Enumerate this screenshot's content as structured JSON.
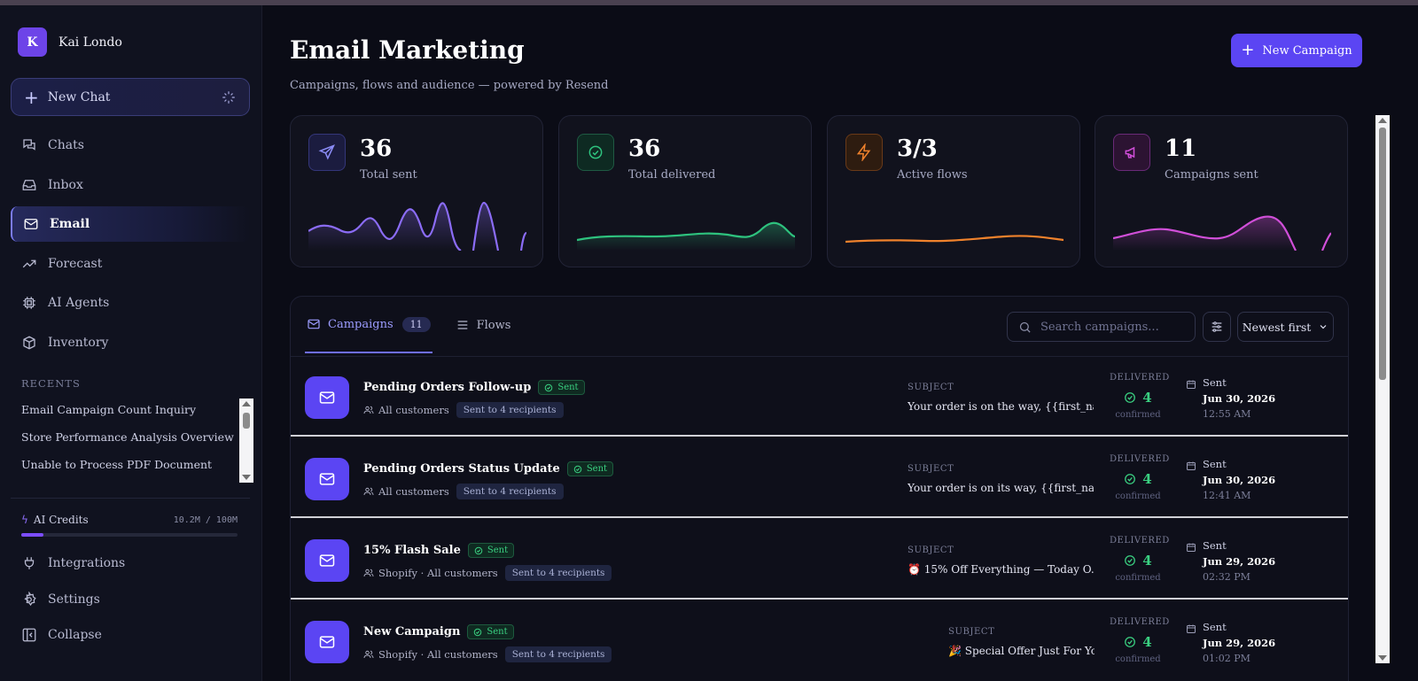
{
  "user": {
    "initial": "K",
    "name": "Kai Londo"
  },
  "sidebar": {
    "new_chat_label": "New Chat",
    "items": [
      {
        "label": "Chats",
        "icon": "chat-icon"
      },
      {
        "label": "Inbox",
        "icon": "inbox-icon"
      },
      {
        "label": "Email",
        "icon": "mail-icon",
        "active": true
      },
      {
        "label": "Forecast",
        "icon": "trend-icon"
      },
      {
        "label": "AI Agents",
        "icon": "chip-icon"
      },
      {
        "label": "Inventory",
        "icon": "box-icon"
      }
    ],
    "recents_title": "RECENTS",
    "recents": [
      "Email Campaign Count Inquiry",
      "Store Performance Analysis Overview",
      "Unable to Process PDF Document"
    ],
    "credits": {
      "label": "AI Credits",
      "value": "10.2M / 100M",
      "fraction": 0.102
    },
    "bottom": [
      {
        "label": "Integrations",
        "icon": "plug-icon"
      },
      {
        "label": "Settings",
        "icon": "gear-icon"
      },
      {
        "label": "Collapse",
        "icon": "collapse-icon"
      }
    ]
  },
  "header": {
    "title": "Email Marketing",
    "subtitle": "Campaigns, flows and audience — powered by Resend",
    "new_campaign_label": "New Campaign"
  },
  "stats": [
    {
      "value": "36",
      "label": "Total sent",
      "icon": "send-icon",
      "color": "#8b6cf6"
    },
    {
      "value": "36",
      "label": "Total delivered",
      "icon": "check-circle-icon",
      "color": "#2ec27e"
    },
    {
      "value": "3/3",
      "label": "Active flows",
      "icon": "bolt-icon",
      "color": "#f0822c"
    },
    {
      "value": "11",
      "label": "Campaigns sent",
      "icon": "megaphone-icon",
      "color": "#d04fd8"
    }
  ],
  "tabs": {
    "campaigns_label": "Campaigns",
    "campaigns_count": "11",
    "flows_label": "Flows",
    "search_placeholder": "Search campaigns...",
    "sort_label": "Newest first"
  },
  "labels": {
    "sent_badge": "Sent",
    "subject": "SUBJECT",
    "delivered": "DELIVERED",
    "confirmed": "confirmed",
    "sent": "Sent"
  },
  "campaigns": [
    {
      "name": "Pending Orders Follow-up",
      "audience": "All customers",
      "recipients": "Sent to 4 recipients",
      "subject": "Your order is on the way, {{first_na...",
      "delivered": "4",
      "date": "Jun 30, 2026",
      "time": "12:55 AM"
    },
    {
      "name": "Pending Orders Status Update",
      "audience": "All customers",
      "recipients": "Sent to 4 recipients",
      "subject": "Your order is on its way, {{first_nam...",
      "delivered": "4",
      "date": "Jun 30, 2026",
      "time": "12:41 AM"
    },
    {
      "name": "15% Flash Sale",
      "audience": "Shopify · All customers",
      "recipients": "Sent to 4 recipients",
      "subject": "⏰ 15% Off Everything — Today O...",
      "delivered": "4",
      "date": "Jun 29, 2026",
      "time": "02:32 PM"
    },
    {
      "name": "New Campaign",
      "audience": "Shopify · All customers",
      "recipients": "Sent to 4 recipients",
      "subject": "🎉 Special Offer Just For You",
      "delivered": "4",
      "date": "Jun 29, 2026",
      "time": "01:02 PM"
    }
  ]
}
